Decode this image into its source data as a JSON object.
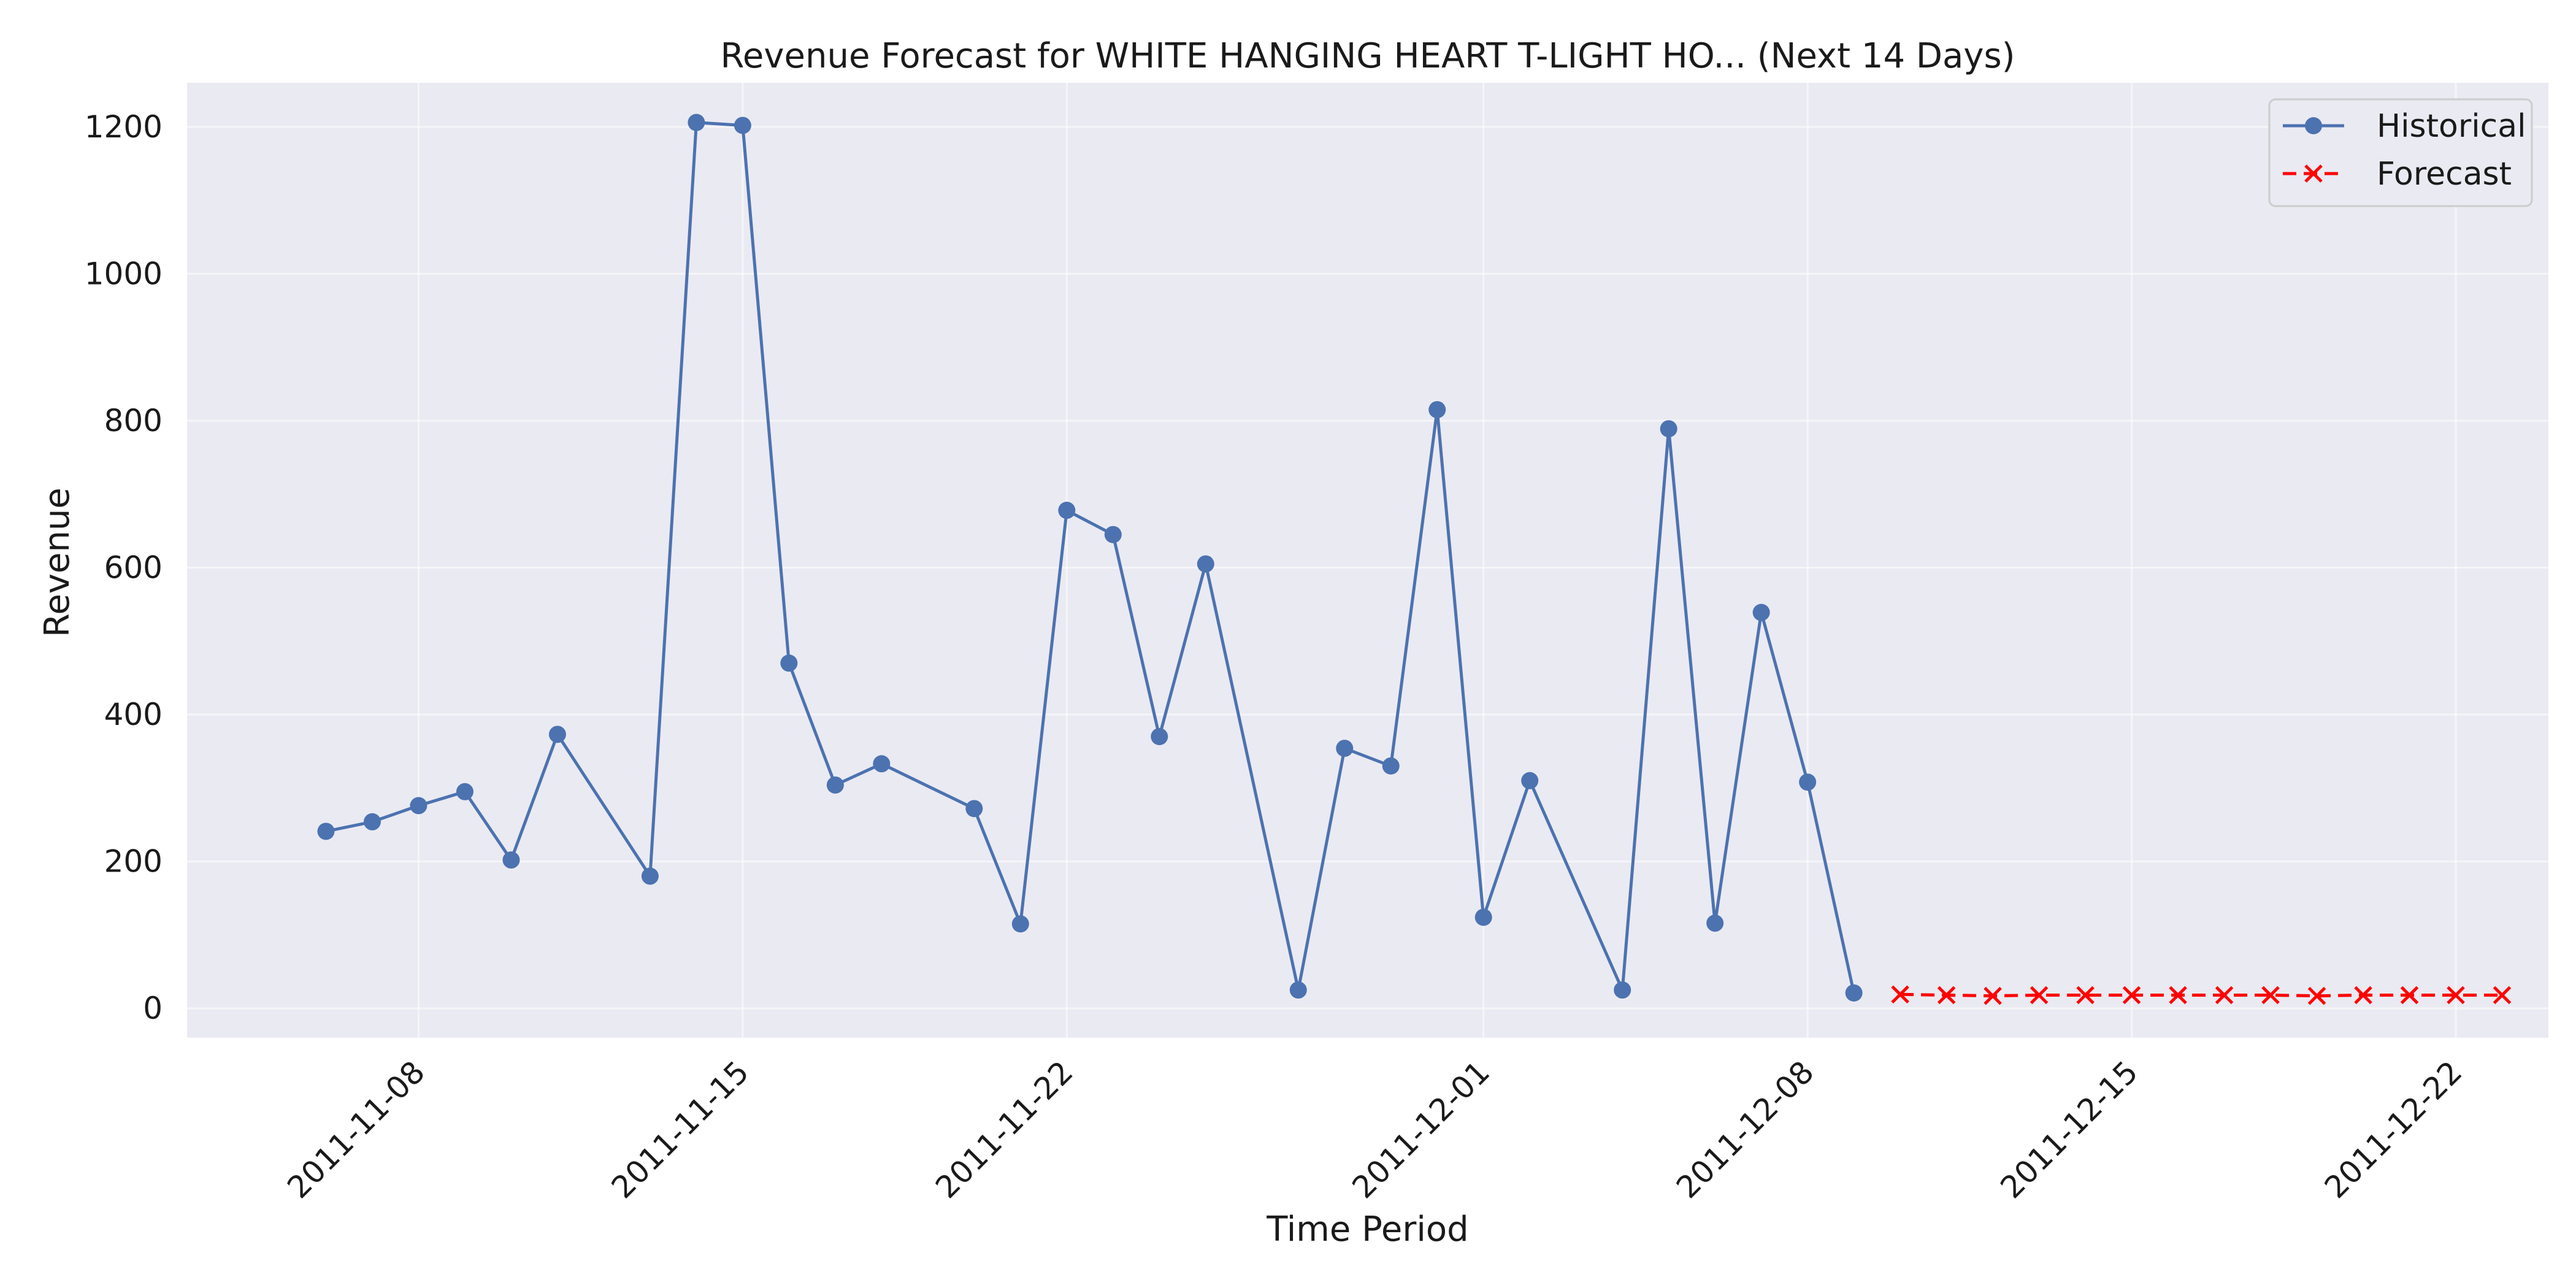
{
  "chart_data": {
    "type": "line",
    "title": "Revenue Forecast for WHITE HANGING HEART T-LIGHT HO... (Next 14 Days)",
    "xlabel": "Time Period",
    "ylabel": "Revenue",
    "x_ticks": [
      "2011-11-08",
      "2011-11-15",
      "2011-11-22",
      "2011-12-01",
      "2011-12-08",
      "2011-12-15",
      "2011-12-22"
    ],
    "y_ticks": [
      0,
      200,
      400,
      600,
      800,
      1000,
      1200
    ],
    "xlim": [
      "2011-11-03",
      "2011-12-24"
    ],
    "ylim": [
      -40,
      1260
    ],
    "grid": true,
    "legend_position": "top-right",
    "series": [
      {
        "name": "Historical",
        "color": "#4c72b0",
        "style": "solid",
        "marker": "circle",
        "points": [
          {
            "x": "2011-11-06",
            "y": 241
          },
          {
            "x": "2011-11-07",
            "y": 254
          },
          {
            "x": "2011-11-08",
            "y": 276
          },
          {
            "x": "2011-11-09",
            "y": 295
          },
          {
            "x": "2011-11-10",
            "y": 202
          },
          {
            "x": "2011-11-11",
            "y": 373
          },
          {
            "x": "2011-11-13",
            "y": 180
          },
          {
            "x": "2011-11-14",
            "y": 1206
          },
          {
            "x": "2011-11-15",
            "y": 1202
          },
          {
            "x": "2011-11-16",
            "y": 470
          },
          {
            "x": "2011-11-17",
            "y": 304
          },
          {
            "x": "2011-11-18",
            "y": 333
          },
          {
            "x": "2011-11-20",
            "y": 272
          },
          {
            "x": "2011-11-21",
            "y": 115
          },
          {
            "x": "2011-11-22",
            "y": 678
          },
          {
            "x": "2011-11-23",
            "y": 645
          },
          {
            "x": "2011-11-24",
            "y": 370
          },
          {
            "x": "2011-11-25",
            "y": 605
          },
          {
            "x": "2011-11-27",
            "y": 25
          },
          {
            "x": "2011-11-28",
            "y": 354
          },
          {
            "x": "2011-11-29",
            "y": 330
          },
          {
            "x": "2011-11-30",
            "y": 815
          },
          {
            "x": "2011-12-01",
            "y": 124
          },
          {
            "x": "2011-12-02",
            "y": 310
          },
          {
            "x": "2011-12-04",
            "y": 25
          },
          {
            "x": "2011-12-05",
            "y": 789
          },
          {
            "x": "2011-12-06",
            "y": 116
          },
          {
            "x": "2011-12-07",
            "y": 539
          },
          {
            "x": "2011-12-08",
            "y": 308
          },
          {
            "x": "2011-12-09",
            "y": 21
          }
        ]
      },
      {
        "name": "Forecast",
        "color": "#ff0000",
        "style": "dashed",
        "marker": "x",
        "points": [
          {
            "x": "2011-12-10",
            "y": 19
          },
          {
            "x": "2011-12-11",
            "y": 18
          },
          {
            "x": "2011-12-12",
            "y": 17
          },
          {
            "x": "2011-12-13",
            "y": 18
          },
          {
            "x": "2011-12-14",
            "y": 18
          },
          {
            "x": "2011-12-15",
            "y": 18
          },
          {
            "x": "2011-12-16",
            "y": 18
          },
          {
            "x": "2011-12-17",
            "y": 18
          },
          {
            "x": "2011-12-18",
            "y": 18
          },
          {
            "x": "2011-12-19",
            "y": 17
          },
          {
            "x": "2011-12-20",
            "y": 18
          },
          {
            "x": "2011-12-21",
            "y": 18
          },
          {
            "x": "2011-12-22",
            "y": 18
          },
          {
            "x": "2011-12-23",
            "y": 18
          }
        ]
      }
    ],
    "colors": {
      "plot_background": "#eaeaf2",
      "grid": "#ffffff",
      "text": "#1a1a1a"
    }
  }
}
